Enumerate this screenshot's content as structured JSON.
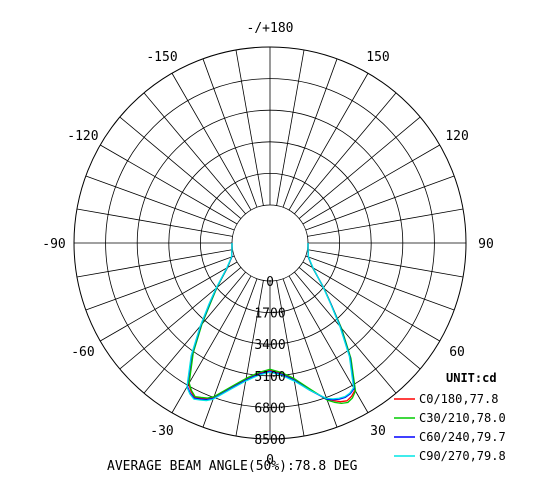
{
  "chart_data": {
    "type": "polar-line",
    "unit_label": "UNIT:cd",
    "footer": "AVERAGE BEAM ANGLE(50%):78.8 DEG",
    "radial_ticks": [
      0,
      1700,
      3400,
      5100,
      6800,
      8500
    ],
    "rmax": 8500,
    "angle_labels": [
      {
        "angle": 0,
        "text": "0"
      },
      {
        "angle": 30,
        "text": "30"
      },
      {
        "angle": -30,
        "text": "-30"
      },
      {
        "angle": 60,
        "text": "60"
      },
      {
        "angle": -60,
        "text": "-60"
      },
      {
        "angle": 90,
        "text": "90"
      },
      {
        "angle": -90,
        "text": "-90"
      },
      {
        "angle": 120,
        "text": "120"
      },
      {
        "angle": -120,
        "text": "-120"
      },
      {
        "angle": 150,
        "text": "150"
      },
      {
        "angle": -150,
        "text": "-150"
      },
      {
        "angle": 180,
        "text": "-/+180"
      }
    ],
    "angles": [
      -90,
      -80,
      -70,
      -60,
      -50,
      -45,
      -40,
      -35,
      -30,
      -28,
      -26,
      -24,
      -22,
      -20,
      -15,
      -10,
      -5,
      0,
      5,
      10,
      15,
      20,
      22,
      24,
      26,
      28,
      30,
      35,
      40,
      45,
      50,
      60,
      70,
      80,
      90
    ],
    "series": [
      {
        "name": "C0/180,77.8",
        "color": "#ff0000",
        "values": [
          0,
          30,
          150,
          600,
          1700,
          2500,
          3700,
          5200,
          6700,
          7000,
          7200,
          7100,
          7000,
          6800,
          6000,
          5400,
          5000,
          4800,
          5000,
          5400,
          6100,
          6900,
          7100,
          7300,
          7400,
          7300,
          7100,
          5500,
          3900,
          2600,
          1750,
          600,
          150,
          30,
          0
        ]
      },
      {
        "name": "C30/210,78.0",
        "color": "#00cc00",
        "values": [
          0,
          30,
          150,
          600,
          1680,
          2450,
          3650,
          5150,
          6650,
          6950,
          7150,
          7050,
          6950,
          6750,
          5950,
          5350,
          4950,
          4750,
          4950,
          5350,
          6050,
          6950,
          7200,
          7400,
          7500,
          7400,
          7150,
          5550,
          3950,
          2600,
          1750,
          600,
          150,
          30,
          0
        ]
      },
      {
        "name": "C60/240,79.7",
        "color": "#0000ff",
        "values": [
          0,
          30,
          150,
          620,
          1720,
          2550,
          3750,
          5300,
          6850,
          7100,
          7250,
          7150,
          7050,
          6850,
          6050,
          5450,
          5050,
          4850,
          5050,
          5450,
          6150,
          6900,
          7050,
          7150,
          7200,
          7150,
          7000,
          5450,
          3850,
          2580,
          1730,
          620,
          150,
          30,
          0
        ]
      },
      {
        "name": "C90/270,79.8",
        "color": "#00e5e5",
        "values": [
          0,
          30,
          160,
          640,
          1750,
          2600,
          3800,
          5350,
          6900,
          7150,
          7300,
          7200,
          7100,
          6900,
          6100,
          5500,
          5100,
          4900,
          5100,
          5500,
          6150,
          6850,
          7000,
          7100,
          7150,
          7100,
          6950,
          5400,
          3800,
          2550,
          1720,
          630,
          160,
          30,
          0
        ]
      }
    ]
  }
}
